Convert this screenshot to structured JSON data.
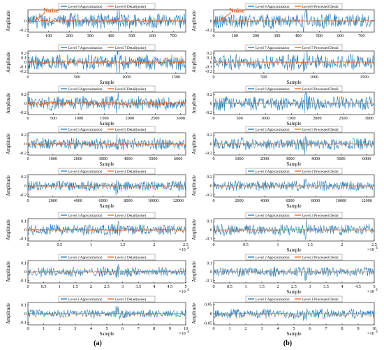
{
  "colors": {
    "approximation": "#1f77b4",
    "detail": "#e8621a",
    "noise_annotation": "#e8621a"
  },
  "captions": [
    "(a)",
    "(b)"
  ],
  "noise_label": "Noise",
  "chart_data": [
    {
      "type": "line",
      "panel": "a",
      "row": 1,
      "legend": [
        "Level 8 Approximation",
        "Level 8 Detail(noise)"
      ],
      "xlabel": "",
      "ylabel": "Amplitude",
      "xlim": [
        0,
        760
      ],
      "xticks": [
        "0",
        "100",
        "200",
        "300",
        "400",
        "500",
        "600",
        "700"
      ],
      "xtickvals": [
        0,
        100,
        200,
        300,
        400,
        500,
        600,
        700
      ],
      "ylim": [
        -0.25,
        0.25
      ],
      "yticks": [
        "0",
        "-0.2"
      ],
      "ytickvals": [
        0,
        -0.2
      ],
      "approx_amplitude": 0.18,
      "detail_amplitude": 0.03
    },
    {
      "type": "line",
      "panel": "a",
      "row": 2,
      "legend": [
        "Level 7 Approximation",
        "Level 7 Detail(noise)"
      ],
      "xlabel": "Sample",
      "ylabel": "Amplitude",
      "xlim": [
        0,
        1600
      ],
      "xticks": [
        "0",
        "500",
        "1000",
        "1500"
      ],
      "xtickvals": [
        0,
        500,
        1000,
        1500
      ],
      "ylim": [
        -0.25,
        0.25
      ],
      "yticks": [
        "0.2",
        "0.1",
        "0",
        "-0.1",
        "-0.2"
      ],
      "ytickvals": [
        0.2,
        0.1,
        0,
        -0.1,
        -0.2
      ],
      "approx_amplitude": 0.19,
      "detail_amplitude": 0.04
    },
    {
      "type": "line",
      "panel": "a",
      "row": 3,
      "legend": [
        "Level 6 Approximation",
        "Level 6 Detail(noise)"
      ],
      "xlabel": "Sample",
      "ylabel": "Amplitude",
      "xlim": [
        0,
        3100
      ],
      "xticks": [
        "0",
        "500",
        "1000",
        "1500",
        "2000",
        "2500",
        "3000"
      ],
      "xtickvals": [
        0,
        500,
        1000,
        1500,
        2000,
        2500,
        3000
      ],
      "ylim": [
        -0.25,
        0.25
      ],
      "yticks": [
        "0.2",
        "0",
        "-0.2"
      ],
      "ytickvals": [
        0.2,
        0,
        -0.2
      ],
      "approx_amplitude": 0.17,
      "detail_amplitude": 0.05
    },
    {
      "type": "line",
      "panel": "a",
      "row": 4,
      "legend": [
        "Level 5 Approximation",
        "Level 5 Detail(noise)"
      ],
      "xlabel": "Sample",
      "ylabel": "Amplitude",
      "xlim": [
        0,
        6300
      ],
      "xticks": [
        "0",
        "1000",
        "2000",
        "3000",
        "4000",
        "5000",
        "6000"
      ],
      "xtickvals": [
        0,
        1000,
        2000,
        3000,
        4000,
        5000,
        6000
      ],
      "ylim": [
        -0.25,
        0.25
      ],
      "yticks": [
        "0.2",
        "0",
        "-0.2"
      ],
      "ytickvals": [
        0.2,
        0,
        -0.2
      ],
      "approx_amplitude": 0.14,
      "detail_amplitude": 0.03
    },
    {
      "type": "line",
      "panel": "a",
      "row": 5,
      "legend": [
        "Level 4 Approximation",
        "Level 4 Detail(noise)"
      ],
      "xlabel": "Sample",
      "ylabel": "Amplitude",
      "xlim": [
        0,
        12600
      ],
      "xticks": [
        "0",
        "2000",
        "4000",
        "6000",
        "8000",
        "10000",
        "12000"
      ],
      "xtickvals": [
        0,
        2000,
        4000,
        6000,
        8000,
        10000,
        12000
      ],
      "ylim": [
        -0.25,
        0.25
      ],
      "yticks": [
        "0.2",
        "0",
        "-0.2"
      ],
      "ytickvals": [
        0.2,
        0,
        -0.2
      ],
      "approx_amplitude": 0.12,
      "detail_amplitude": 0.02
    },
    {
      "type": "line",
      "panel": "a",
      "row": 6,
      "legend": [
        "Level 3 Approximation",
        "Level 3 Detail(noise)"
      ],
      "xlabel": "",
      "ylabel": "Amplitude",
      "xlim": [
        0,
        2.5
      ],
      "xticks": [
        "0",
        "0.5",
        "1",
        "1.5",
        "2",
        "2.5"
      ],
      "xtickvals": [
        0,
        0.5,
        1,
        1.5,
        2,
        2.5
      ],
      "x_multiplier": "×10",
      "x_exponent": "4",
      "ylim": [
        -0.13,
        0.13
      ],
      "yticks": [
        "0.1",
        "0",
        "-0.1"
      ],
      "ytickvals": [
        0.1,
        0,
        -0.1
      ],
      "approx_amplitude": 0.07,
      "detail_amplitude": 0.012
    },
    {
      "type": "line",
      "panel": "a",
      "row": 7,
      "legend": [
        "Level 2 Approximation",
        "Level 2 Detail(noise)"
      ],
      "xlabel": "",
      "ylabel": "Amplitude",
      "xlim": [
        0,
        5
      ],
      "xticks": [
        "0",
        "0.5",
        "1",
        "1.5",
        "2",
        "2.5",
        "3",
        "3.5",
        "4",
        "4.5",
        "5"
      ],
      "xtickvals": [
        0,
        0.5,
        1,
        1.5,
        2,
        2.5,
        3,
        3.5,
        4,
        4.5,
        5
      ],
      "x_multiplier": "×10",
      "x_exponent": "4",
      "ylim": [
        -0.13,
        0.13
      ],
      "yticks": [
        "0.1",
        "0",
        "-0.1"
      ],
      "ytickvals": [
        0.1,
        0,
        -0.1
      ],
      "approx_amplitude": 0.06,
      "detail_amplitude": 0.008
    },
    {
      "type": "line",
      "panel": "a",
      "row": 8,
      "legend": [
        "Level 1 Approximation",
        "Level 1 Detail(noise)"
      ],
      "xlabel": "Sample",
      "ylabel": "Amplitude",
      "xlim": [
        0,
        10
      ],
      "xticks": [
        "0",
        "1",
        "2",
        "3",
        "4",
        "5",
        "6",
        "7",
        "8",
        "9",
        "10"
      ],
      "xtickvals": [
        0,
        1,
        2,
        3,
        4,
        5,
        6,
        7,
        8,
        9,
        10
      ],
      "x_multiplier": "×10",
      "x_exponent": "4",
      "ylim": [
        -0.13,
        0.13
      ],
      "yticks": [
        "0.1",
        "0",
        "-0.1"
      ],
      "ytickvals": [
        0.1,
        0,
        -0.1
      ],
      "approx_amplitude": 0.05,
      "detail_amplitude": 0.006
    },
    {
      "type": "line",
      "panel": "b",
      "row": 1,
      "legend": [
        "Level 8 Approximation",
        "Level 8 Processed Detail"
      ],
      "xlabel": "",
      "ylabel": "Amplitude",
      "xlim": [
        0,
        760
      ],
      "xticks": [
        "0",
        "100",
        "200",
        "300",
        "400",
        "500",
        "600",
        "700"
      ],
      "xtickvals": [
        0,
        100,
        200,
        300,
        400,
        500,
        600,
        700
      ],
      "ylim": [
        -0.25,
        0.25
      ],
      "yticks": [
        "0",
        "-0.2"
      ],
      "ytickvals": [
        0,
        -0.2
      ],
      "approx_amplitude": 0.18,
      "detail_amplitude": 0.01
    },
    {
      "type": "line",
      "panel": "b",
      "row": 2,
      "legend": [
        "Level 7 Approximation",
        "Level 7 Processed Detail"
      ],
      "xlabel": "Sample",
      "ylabel": "Amplitude",
      "xlim": [
        0,
        1600
      ],
      "xticks": [
        "0",
        "500",
        "1000",
        "1500"
      ],
      "xtickvals": [
        0,
        500,
        1000,
        1500
      ],
      "ylim": [
        -0.25,
        0.25
      ],
      "yticks": [
        "0.2",
        "0.1",
        "0",
        "-0.1",
        "-0.2"
      ],
      "ytickvals": [
        0.2,
        0.1,
        0,
        -0.1,
        -0.2
      ],
      "approx_amplitude": 0.19,
      "detail_amplitude": 0.015
    },
    {
      "type": "line",
      "panel": "b",
      "row": 3,
      "legend": [
        "Level 6 Approximation",
        "Level 6 Processed Detail"
      ],
      "xlabel": "Sample",
      "ylabel": "Amplitude",
      "xlim": [
        0,
        3100
      ],
      "xticks": [
        "0",
        "500",
        "1000",
        "1500",
        "2000",
        "2500",
        "3000"
      ],
      "xtickvals": [
        0,
        500,
        1000,
        1500,
        2000,
        2500,
        3000
      ],
      "ylim": [
        -0.25,
        0.25
      ],
      "yticks": [
        "0.2",
        "0",
        "-0.2"
      ],
      "ytickvals": [
        0.2,
        0,
        -0.2
      ],
      "approx_amplitude": 0.17,
      "detail_amplitude": 0.01
    },
    {
      "type": "line",
      "panel": "b",
      "row": 4,
      "legend": [
        "Level 5 Approximation",
        "Level 5 Processed Detail"
      ],
      "xlabel": "Sample",
      "ylabel": "Amplitude",
      "xlim": [
        0,
        6300
      ],
      "xticks": [
        "0",
        "1000",
        "2000",
        "3000",
        "4000",
        "5000",
        "6000"
      ],
      "xtickvals": [
        0,
        1000,
        2000,
        3000,
        4000,
        5000,
        6000
      ],
      "ylim": [
        -0.25,
        0.25
      ],
      "yticks": [
        "0.2",
        "0",
        "-0.2"
      ],
      "ytickvals": [
        0.2,
        0,
        -0.2
      ],
      "approx_amplitude": 0.14,
      "detail_amplitude": 0.008
    },
    {
      "type": "line",
      "panel": "b",
      "row": 5,
      "legend": [
        "Level 4 Approximation",
        "Level 4 Processed Detail"
      ],
      "xlabel": "Sample",
      "ylabel": "Amplitude",
      "xlim": [
        0,
        12600
      ],
      "xticks": [
        "0",
        "2000",
        "4000",
        "6000",
        "8000",
        "10000",
        "12000"
      ],
      "xtickvals": [
        0,
        2000,
        4000,
        6000,
        8000,
        10000,
        12000
      ],
      "ylim": [
        -0.25,
        0.25
      ],
      "yticks": [
        "0.2",
        "0",
        "-0.2"
      ],
      "ytickvals": [
        0.2,
        0,
        -0.2
      ],
      "approx_amplitude": 0.12,
      "detail_amplitude": 0.006
    },
    {
      "type": "line",
      "panel": "b",
      "row": 6,
      "legend": [
        "Level 3 Approximation",
        "Level 3 Processed Detail"
      ],
      "xlabel": "Sample",
      "ylabel": "Amplitude",
      "xlim": [
        0,
        2.5
      ],
      "xticks": [
        "0",
        "0.5",
        "1",
        "1.5",
        "2",
        "2.5"
      ],
      "xtickvals": [
        0,
        0.5,
        1,
        1.5,
        2,
        2.5
      ],
      "x_multiplier": "×10",
      "x_exponent": "4",
      "ylim": [
        -0.13,
        0.13
      ],
      "yticks": [
        "0.1",
        "0",
        "-0.1"
      ],
      "ytickvals": [
        0.1,
        0,
        -0.1
      ],
      "approx_amplitude": 0.07,
      "detail_amplitude": 0.004
    },
    {
      "type": "line",
      "panel": "b",
      "row": 7,
      "legend": [
        "Level 2 Approximation",
        "Level 2 Processed Detail"
      ],
      "xlabel": "Sample",
      "ylabel": "Amplitude",
      "xlim": [
        0,
        5
      ],
      "xticks": [
        "0",
        "0.5",
        "1",
        "1.5",
        "2",
        "2.5",
        "3",
        "3.5",
        "4",
        "4.5",
        "5"
      ],
      "xtickvals": [
        0,
        0.5,
        1,
        1.5,
        2,
        2.5,
        3,
        3.5,
        4,
        4.5,
        5
      ],
      "x_multiplier": "×10",
      "x_exponent": "4",
      "ylim": [
        -0.13,
        0.13
      ],
      "yticks": [
        "0.1",
        "0",
        "-0.1"
      ],
      "ytickvals": [
        0.1,
        0,
        -0.1
      ],
      "approx_amplitude": 0.06,
      "detail_amplitude": 0.003
    },
    {
      "type": "line",
      "panel": "b",
      "row": 8,
      "legend": [
        "Level 1 Approximation",
        "Level 1 Processed Detail"
      ],
      "xlabel": "Sample",
      "ylabel": "Amplitude",
      "xlim": [
        0,
        10
      ],
      "xticks": [
        "0",
        "1",
        "2",
        "3",
        "4",
        "5",
        "6",
        "7",
        "8",
        "9",
        "10"
      ],
      "xtickvals": [
        0,
        1,
        2,
        3,
        4,
        5,
        6,
        7,
        8,
        9,
        10
      ],
      "x_multiplier": "×10",
      "x_exponent": "4",
      "ylim": [
        -0.06,
        0.06
      ],
      "yticks": [
        "0.05",
        "0",
        "-0.05"
      ],
      "ytickvals": [
        0.05,
        0,
        -0.05
      ],
      "approx_amplitude": 0.028,
      "detail_amplitude": 0.002
    }
  ]
}
